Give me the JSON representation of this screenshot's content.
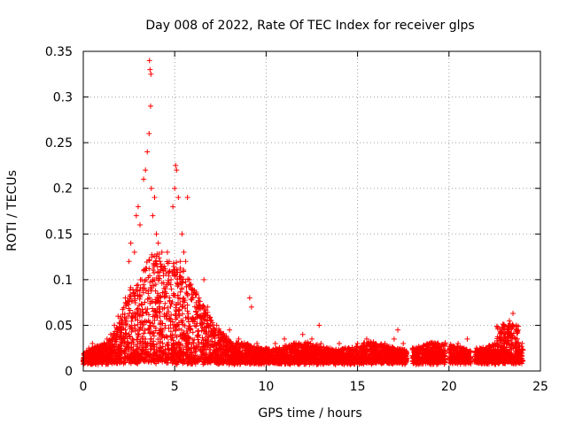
{
  "chart_data": {
    "type": "scatter",
    "title": "Day 008 of 2022, Rate Of TEC Index for receiver glps",
    "xlabel": "GPS time / hours",
    "ylabel": "ROTI / TECUs",
    "xlim": [
      0,
      25
    ],
    "ylim": [
      0,
      0.35
    ],
    "x_ticks": [
      0,
      5,
      10,
      15,
      20,
      25
    ],
    "x_tick_labels": [
      "0",
      "5",
      "10",
      "15",
      "20",
      "25"
    ],
    "y_ticks": [
      0,
      0.05,
      0.1,
      0.15,
      0.2,
      0.25,
      0.3,
      0.35
    ],
    "y_tick_labels": [
      "0",
      "0.05",
      "0.1",
      "0.15",
      "0.2",
      "0.25",
      "0.3",
      "0.35"
    ],
    "grid": true,
    "marker": "+",
    "series": [
      {
        "name": "ROTI",
        "color": "#ff0000",
        "description": "Dense scatter; baseline ~0.01-0.02 TECU/s all day, storm peak between 2.5h and 7h",
        "x": [
          0.1,
          0.3,
          0.5,
          0.8,
          1.0,
          1.3,
          1.5,
          1.7,
          1.9,
          2.1,
          2.3,
          2.5,
          2.6,
          2.8,
          2.9,
          3.0,
          3.1,
          3.2,
          3.3,
          3.4,
          3.5,
          3.6,
          3.62,
          3.65,
          3.68,
          3.7,
          3.72,
          3.8,
          3.9,
          4.0,
          4.1,
          4.2,
          4.3,
          4.4,
          4.5,
          4.6,
          4.7,
          4.8,
          4.9,
          5.0,
          5.05,
          5.1,
          5.2,
          5.3,
          5.4,
          5.5,
          5.6,
          5.7,
          5.8,
          5.9,
          6.0,
          6.2,
          6.4,
          6.6,
          6.8,
          7.0,
          7.3,
          7.6,
          8.0,
          8.5,
          9.0,
          9.1,
          9.2,
          9.5,
          10.0,
          10.5,
          11.0,
          11.5,
          12.0,
          12.5,
          12.9,
          13.0,
          13.5,
          14.0,
          14.5,
          15.0,
          15.5,
          16.0,
          16.5,
          17.0,
          17.2,
          17.5,
          18.0,
          18.5,
          19.0,
          19.5,
          20.0,
          20.5,
          21.0,
          21.5,
          22.0,
          22.5,
          23.0,
          23.3,
          23.5,
          23.7,
          24.0
        ],
        "y": [
          0.02,
          0.025,
          0.03,
          0.02,
          0.025,
          0.035,
          0.04,
          0.05,
          0.06,
          0.055,
          0.08,
          0.12,
          0.14,
          0.13,
          0.17,
          0.18,
          0.16,
          0.1,
          0.21,
          0.22,
          0.24,
          0.26,
          0.34,
          0.33,
          0.29,
          0.325,
          0.2,
          0.17,
          0.19,
          0.15,
          0.14,
          0.12,
          0.13,
          0.11,
          0.09,
          0.13,
          0.12,
          0.1,
          0.18,
          0.2,
          0.225,
          0.22,
          0.19,
          0.12,
          0.15,
          0.13,
          0.12,
          0.19,
          0.1,
          0.09,
          0.08,
          0.07,
          0.06,
          0.1,
          0.07,
          0.055,
          0.05,
          0.04,
          0.045,
          0.035,
          0.03,
          0.08,
          0.07,
          0.03,
          0.025,
          0.03,
          0.035,
          0.03,
          0.04,
          0.035,
          0.05,
          0.03,
          0.025,
          0.03,
          0.025,
          0.03,
          0.035,
          0.03,
          0.03,
          0.035,
          0.045,
          0.03,
          0.025,
          0.025,
          0.02,
          0.025,
          0.02,
          0.03,
          0.035,
          0.025,
          0.025,
          0.03,
          0.05,
          0.055,
          0.063,
          0.045,
          0.03
        ]
      }
    ]
  }
}
